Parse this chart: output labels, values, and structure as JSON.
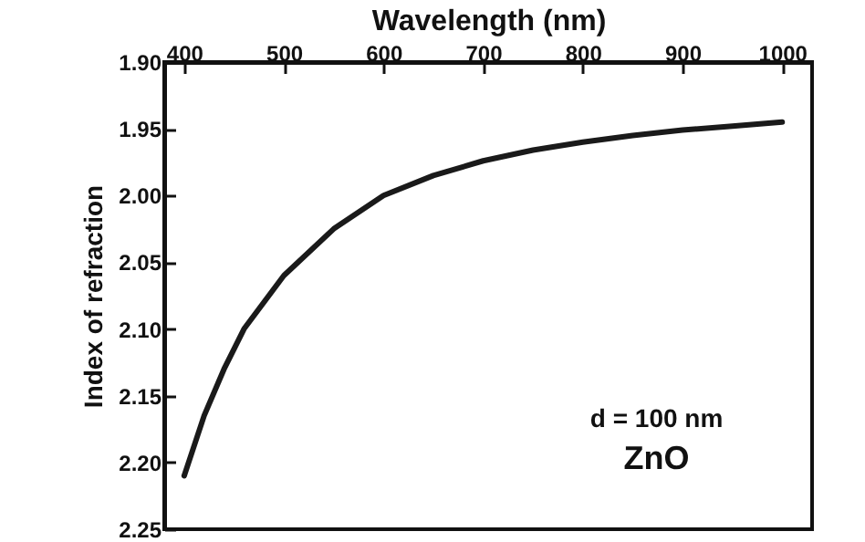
{
  "chart_data": {
    "type": "line",
    "xlabel": "Wavelength (nm)",
    "ylabel": "Index of refraction",
    "annotations": [
      "d = 100 nm",
      "ZnO"
    ],
    "x": [
      400,
      420,
      440,
      460,
      480,
      500,
      550,
      600,
      650,
      700,
      750,
      800,
      850,
      900,
      950,
      1000
    ],
    "series": [
      {
        "color": "#1a1a1a",
        "values": [
          2.21,
          2.165,
          2.13,
          2.1,
          2.08,
          2.06,
          2.025,
          2.0,
          1.985,
          1.974,
          1.966,
          1.96,
          1.955,
          1.951,
          1.948,
          1.945
        ]
      }
    ],
    "xlim": [
      380,
      1030
    ],
    "xticks": [
      400,
      500,
      600,
      700,
      800,
      900,
      1000
    ],
    "ylim": [
      2.25,
      1.9
    ],
    "yticks": [
      {
        "value": 1.9,
        "label": "1.90"
      },
      {
        "value": 1.95,
        "label": "1.95"
      },
      {
        "value": 2.0,
        "label": "2.00"
      },
      {
        "value": 2.05,
        "label": "2.05"
      },
      {
        "value": 2.1,
        "label": "2.10"
      },
      {
        "value": 2.15,
        "label": "2.15"
      },
      {
        "value": 2.2,
        "label": "2.20"
      },
      {
        "value": 2.25,
        "label": "2.25"
      }
    ],
    "grid": false,
    "marker": "none",
    "line_style": "solid"
  }
}
